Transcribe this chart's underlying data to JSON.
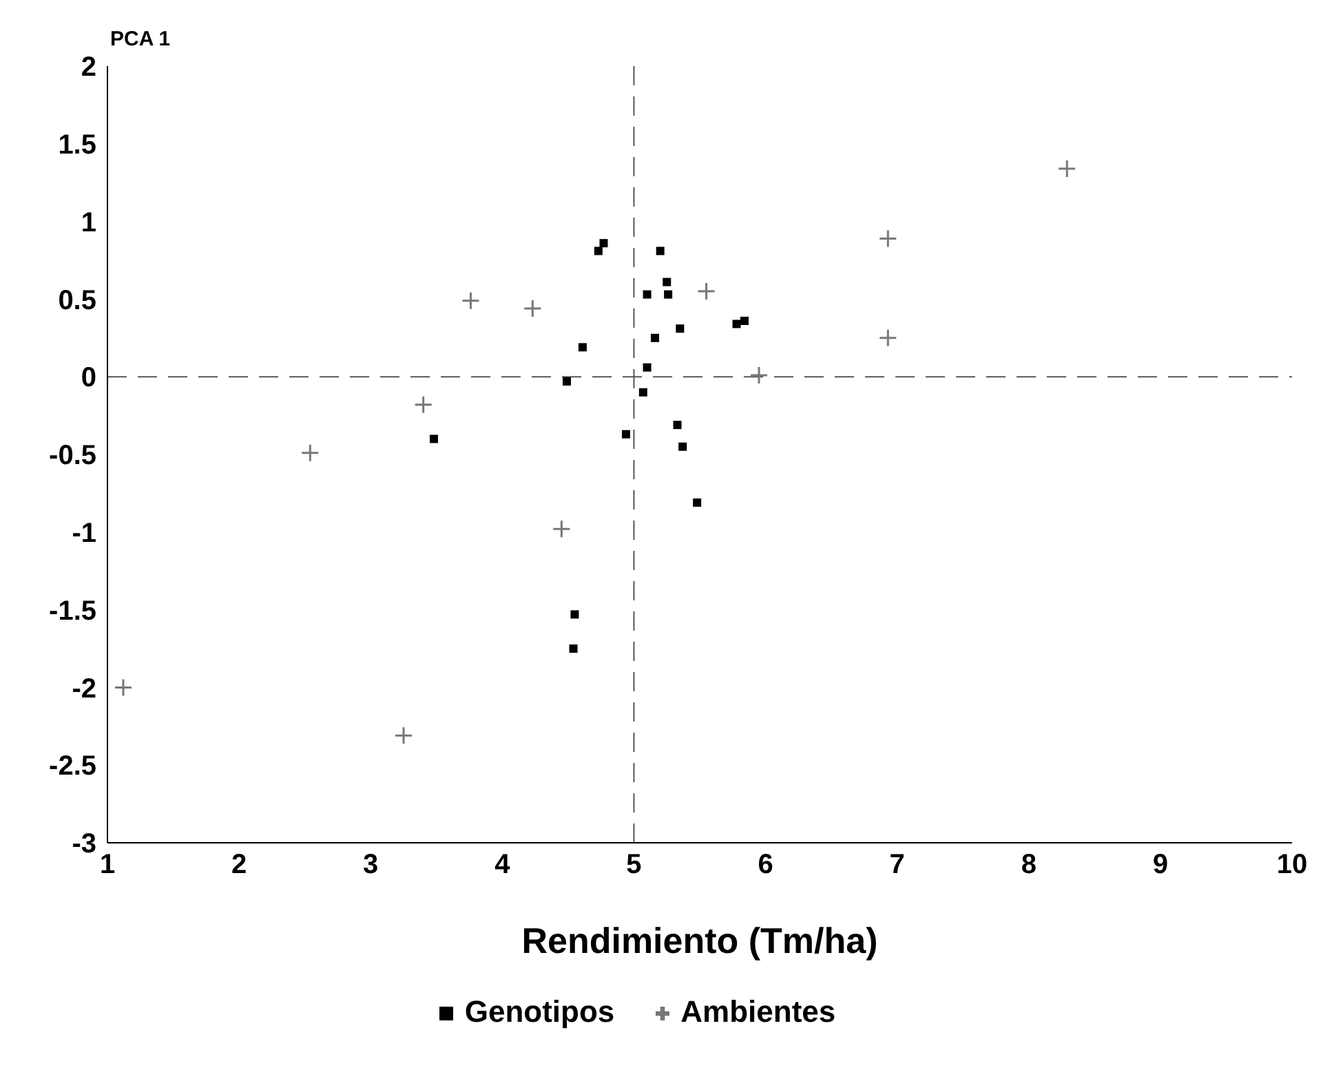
{
  "chart_data": {
    "type": "scatter",
    "xlabel": "Rendimiento (Tm/ha)",
    "ylabel": "PCA 1",
    "xlim": [
      1,
      10
    ],
    "xticks": [
      1,
      2,
      3,
      4,
      5,
      6,
      7,
      8,
      9,
      10
    ],
    "ylim": [
      -3,
      2
    ],
    "yticks": [
      -3,
      -2.5,
      -2,
      -1.5,
      -1,
      -0.5,
      0,
      0.5,
      1,
      1.5,
      2
    ],
    "grid": false,
    "legend": "bottom",
    "ref_lines": [
      {
        "axis": "x",
        "value": 5,
        "line_style": "dashed",
        "color": "#555555"
      },
      {
        "axis": "y",
        "value": 0,
        "line_style": "dashed",
        "color": "#555555"
      }
    ],
    "series": [
      {
        "name": "Genotipos",
        "color": "#000000",
        "marker": "square",
        "x": [
          4.73,
          4.77,
          5.2,
          5.25,
          5.26,
          5.1,
          5.35,
          5.16,
          5.78,
          5.84,
          4.61,
          5.1,
          4.49,
          5.07,
          4.94,
          5.33,
          5.37,
          5.48,
          4.55,
          4.54,
          3.48
        ],
        "values": [
          0.81,
          0.86,
          0.81,
          0.61,
          0.53,
          0.53,
          0.31,
          0.25,
          0.34,
          0.36,
          0.19,
          0.06,
          -0.03,
          -0.1,
          -0.37,
          -0.31,
          -0.45,
          -0.81,
          -1.53,
          -1.75,
          -0.4
        ]
      },
      {
        "name": "Ambientes",
        "color": "#777777",
        "marker": "cross",
        "x": [
          3.76,
          4.23,
          3.4,
          2.54,
          4.45,
          1.12,
          3.25,
          8.29,
          6.93,
          6.93,
          5.55,
          5.95
        ],
        "values": [
          0.49,
          0.44,
          -0.18,
          -0.49,
          -0.98,
          -2.0,
          -2.31,
          1.34,
          0.89,
          0.25,
          0.55,
          0.01
        ]
      }
    ]
  }
}
